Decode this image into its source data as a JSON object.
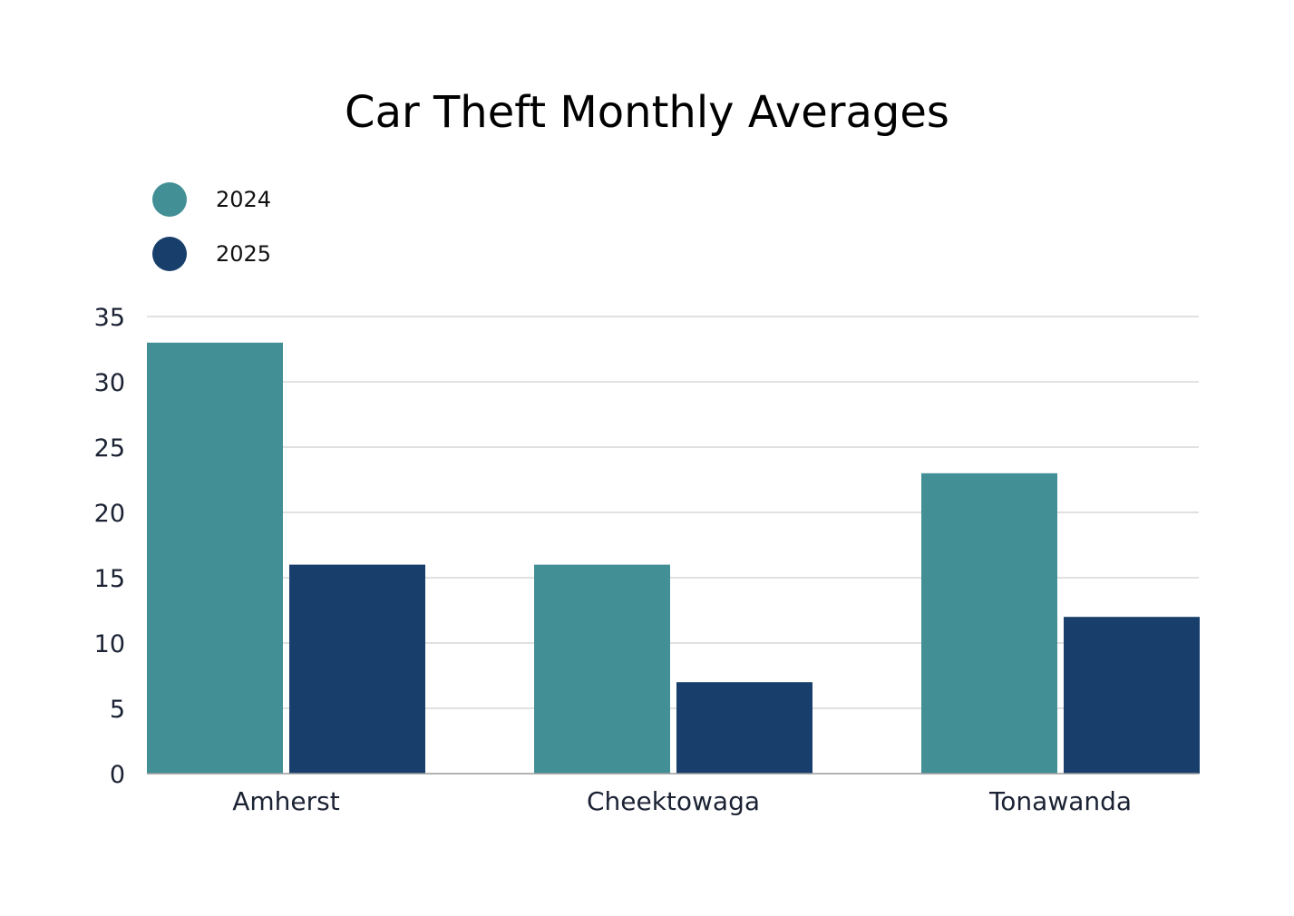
{
  "chart_data": {
    "type": "bar",
    "title": "Car Theft Monthly Averages",
    "categories": [
      "Amherst",
      "Cheektowaga",
      "Tonawanda"
    ],
    "series": [
      {
        "name": "2024",
        "values": [
          33,
          16,
          23
        ],
        "color": "#429096"
      },
      {
        "name": "2025",
        "values": [
          16,
          7,
          12
        ],
        "color": "#183f6c"
      }
    ],
    "ylim": [
      0,
      35
    ],
    "yticks": [
      0,
      5,
      10,
      15,
      20,
      25,
      30,
      35
    ],
    "grid": true,
    "legend_position": "top-left",
    "xlabel": "",
    "ylabel": ""
  }
}
